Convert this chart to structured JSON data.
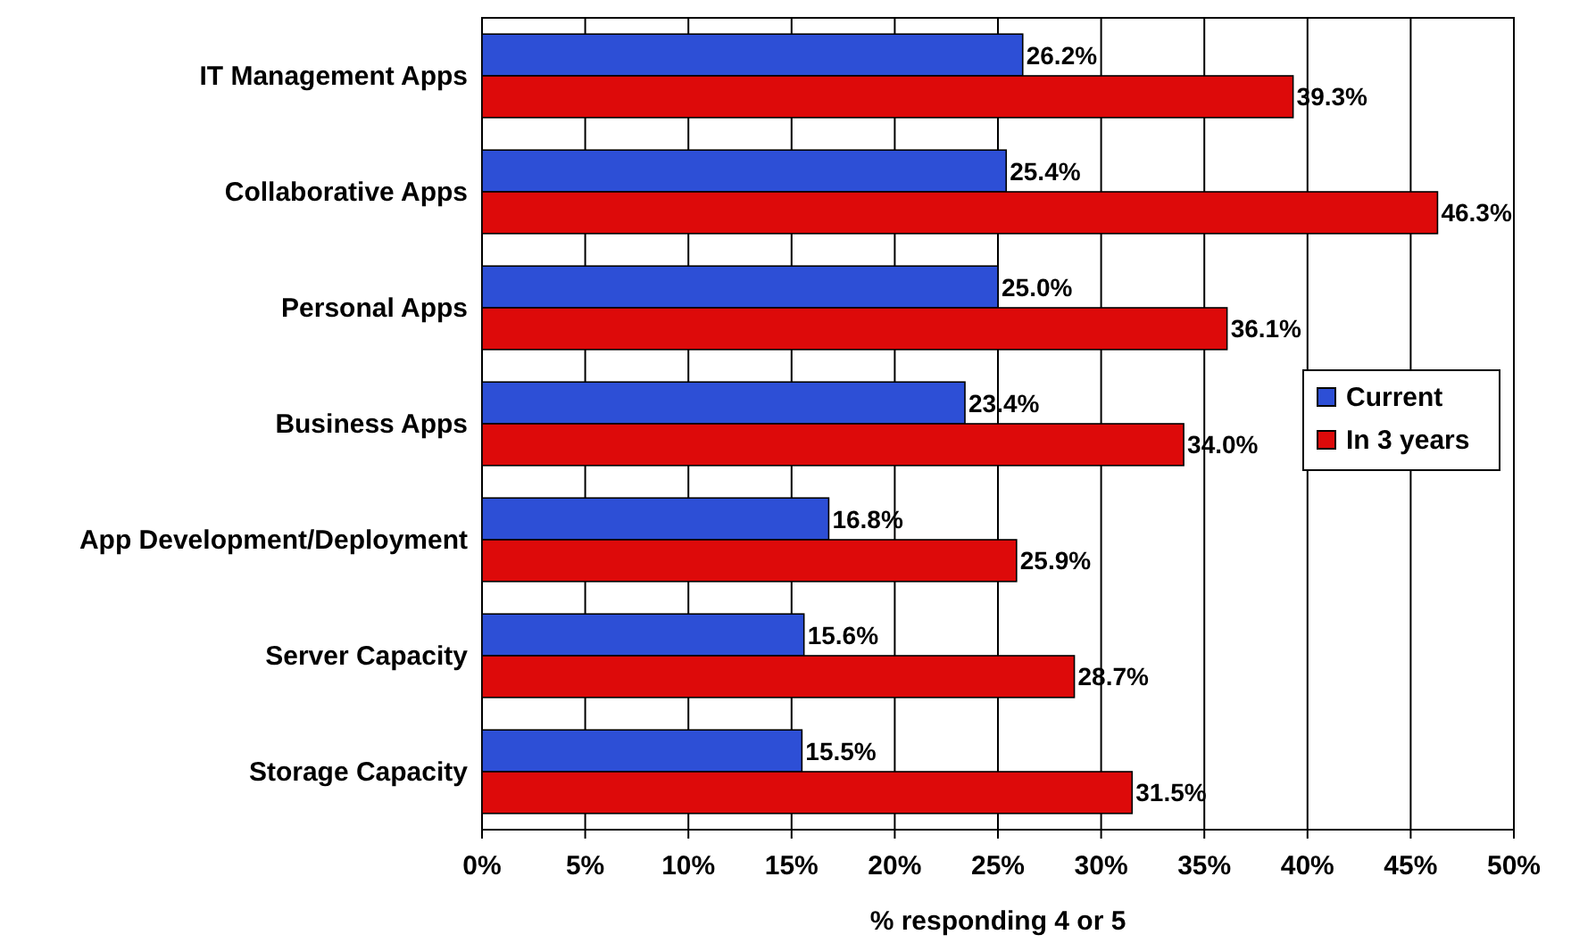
{
  "chart_data": {
    "type": "bar",
    "orientation": "horizontal",
    "xlabel": "% responding 4 or 5",
    "categories": [
      "IT Management Apps",
      "Collaborative Apps",
      "Personal Apps",
      "Business Apps",
      "App Development/Deployment",
      "Server Capacity",
      "Storage Capacity"
    ],
    "series": [
      {
        "name": "Current",
        "color": "#2d4fd6",
        "values": [
          26.2,
          25.4,
          25.0,
          23.4,
          16.8,
          15.6,
          15.5
        ],
        "value_labels": [
          "26.2%",
          "25.4%",
          "25.0%",
          "23.4%",
          "16.8%",
          "15.6%",
          "15.5%"
        ]
      },
      {
        "name": "In 3 years",
        "color": "#dd0a0a",
        "values": [
          39.3,
          46.3,
          36.1,
          34.0,
          25.9,
          28.7,
          31.5
        ],
        "value_labels": [
          "39.3%",
          "46.3%",
          "36.1%",
          "34.0%",
          "25.9%",
          "28.7%",
          "31.5%"
        ]
      }
    ],
    "xlim": [
      0,
      50
    ],
    "xticks": [
      {
        "value": 0,
        "label": "0%"
      },
      {
        "value": 5,
        "label": "5%"
      },
      {
        "value": 10,
        "label": "10%"
      },
      {
        "value": 15,
        "label": "15%"
      },
      {
        "value": 20,
        "label": "20%"
      },
      {
        "value": 25,
        "label": "25%"
      },
      {
        "value": 30,
        "label": "30%"
      },
      {
        "value": 35,
        "label": "35%"
      },
      {
        "value": 40,
        "label": "40%"
      },
      {
        "value": 45,
        "label": "45%"
      },
      {
        "value": 50,
        "label": "50%"
      }
    ],
    "grid": "x",
    "legend": "right"
  }
}
